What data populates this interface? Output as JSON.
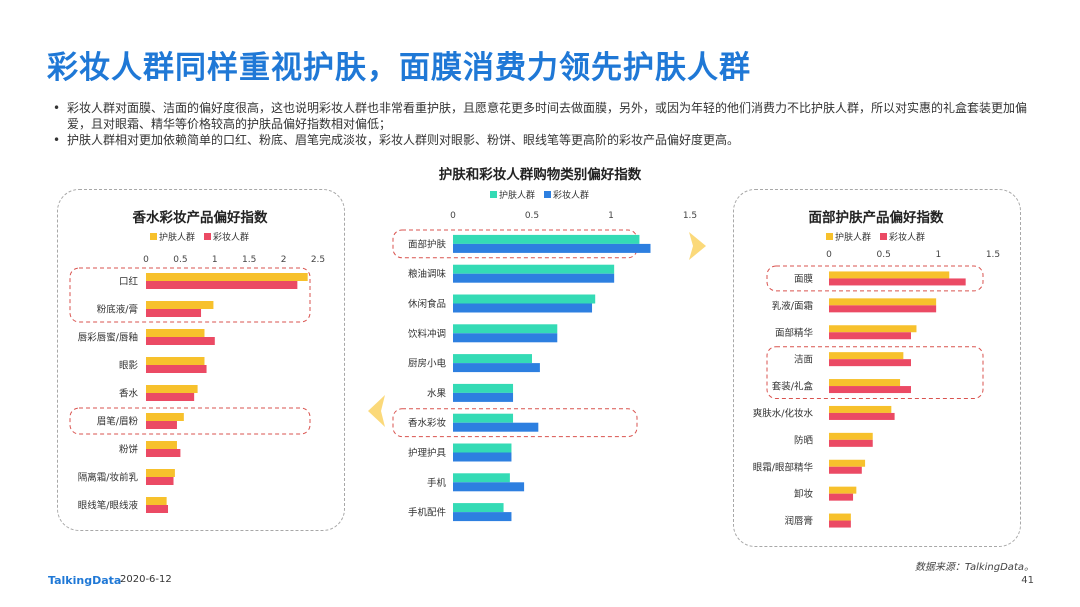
{
  "title": "彩妆人群同样重视护肤，面膜消费力领先护肤人群",
  "bullets": [
    "彩妆人群对面膜、洁面的偏好度很高，这也说明彩妆人群也非常看重护肤，且愿意花更多时间去做面膜，另外，或因为年轻的他们消费力不比护肤人群，所以对实惠的礼盒套装更加偏爱，且对眼霜、精华等价格较高的护肤品偏好指数相对偏低；",
    "护肤人群相对更加依赖简单的口红、粉底、眉笔完成淡妆，彩妆人群则对眼影、粉饼、眼线笔等更高阶的彩妆产品偏好度更高。"
  ],
  "colors": {
    "skincare": "#f7c12c",
    "makeup": "#eb4a64",
    "skincare_center": "#34dbb5",
    "makeup_center": "#2d7fe0",
    "highlight": "#d9534f",
    "title": "#1f78d6"
  },
  "chart_data": [
    {
      "type": "bar",
      "title": "香水彩妆产品偏好指数",
      "orientation": "horizontal",
      "categories": [
        "口红",
        "粉底液/膏",
        "唇彩唇蜜/唇釉",
        "眼影",
        "香水",
        "眉笔/眉粉",
        "粉饼",
        "隔离霜/妆前乳",
        "眼线笔/眼线液"
      ],
      "series": [
        {
          "name": "护肤人群",
          "values": [
            2.35,
            0.98,
            0.85,
            0.85,
            0.75,
            0.55,
            0.45,
            0.42,
            0.3
          ]
        },
        {
          "name": "彩妆人群",
          "values": [
            2.2,
            0.8,
            1.0,
            0.88,
            0.7,
            0.45,
            0.5,
            0.4,
            0.32
          ]
        }
      ],
      "xticks": [
        "0",
        "0.5",
        "1",
        "1.5",
        "2",
        "2.5"
      ],
      "xlim": [
        0,
        2.5
      ],
      "highlighted": [
        "口红",
        "粉底液/膏",
        "眉笔/眉粉"
      ]
    },
    {
      "type": "bar",
      "title": "护肤和彩妆人群购物类别偏好指数",
      "orientation": "horizontal",
      "categories": [
        "面部护肤",
        "粮油调味",
        "休闲食品",
        "饮料冲调",
        "厨房小电",
        "水果",
        "香水彩妆",
        "护理护具",
        "手机",
        "手机配件"
      ],
      "series": [
        {
          "name": "护肤人群",
          "values": [
            1.18,
            1.02,
            0.9,
            0.66,
            0.5,
            0.38,
            0.38,
            0.37,
            0.36,
            0.32
          ]
        },
        {
          "name": "彩妆人群",
          "values": [
            1.25,
            1.02,
            0.88,
            0.66,
            0.55,
            0.38,
            0.54,
            0.37,
            0.45,
            0.37
          ]
        }
      ],
      "xticks": [
        "0",
        "0.5",
        "1",
        "1.5"
      ],
      "xlim": [
        0,
        1.5
      ],
      "highlighted": [
        "面部护肤",
        "香水彩妆"
      ]
    },
    {
      "type": "bar",
      "title": "面部护肤产品偏好指数",
      "orientation": "horizontal",
      "categories": [
        "面膜",
        "乳液/面霜",
        "面部精华",
        "洁面",
        "套装/礼盒",
        "爽肤水/化妆水",
        "防晒",
        "眼霜/眼部精华",
        "卸妆",
        "润唇膏"
      ],
      "series": [
        {
          "name": "护肤人群",
          "values": [
            1.1,
            0.98,
            0.8,
            0.68,
            0.65,
            0.57,
            0.4,
            0.33,
            0.25,
            0.2
          ]
        },
        {
          "name": "彩妆人群",
          "values": [
            1.25,
            0.98,
            0.75,
            0.75,
            0.75,
            0.6,
            0.4,
            0.3,
            0.22,
            0.2
          ]
        }
      ],
      "xticks": [
        "0",
        "0.5",
        "1",
        "1.5"
      ],
      "xlim": [
        0,
        1.5
      ],
      "highlighted": [
        "面膜",
        "洁面",
        "套装/礼盒"
      ]
    }
  ],
  "footer": {
    "logo": "TalkingData",
    "date": "2020-6-12",
    "source": "数据来源：TalkingData。",
    "page": "41"
  }
}
